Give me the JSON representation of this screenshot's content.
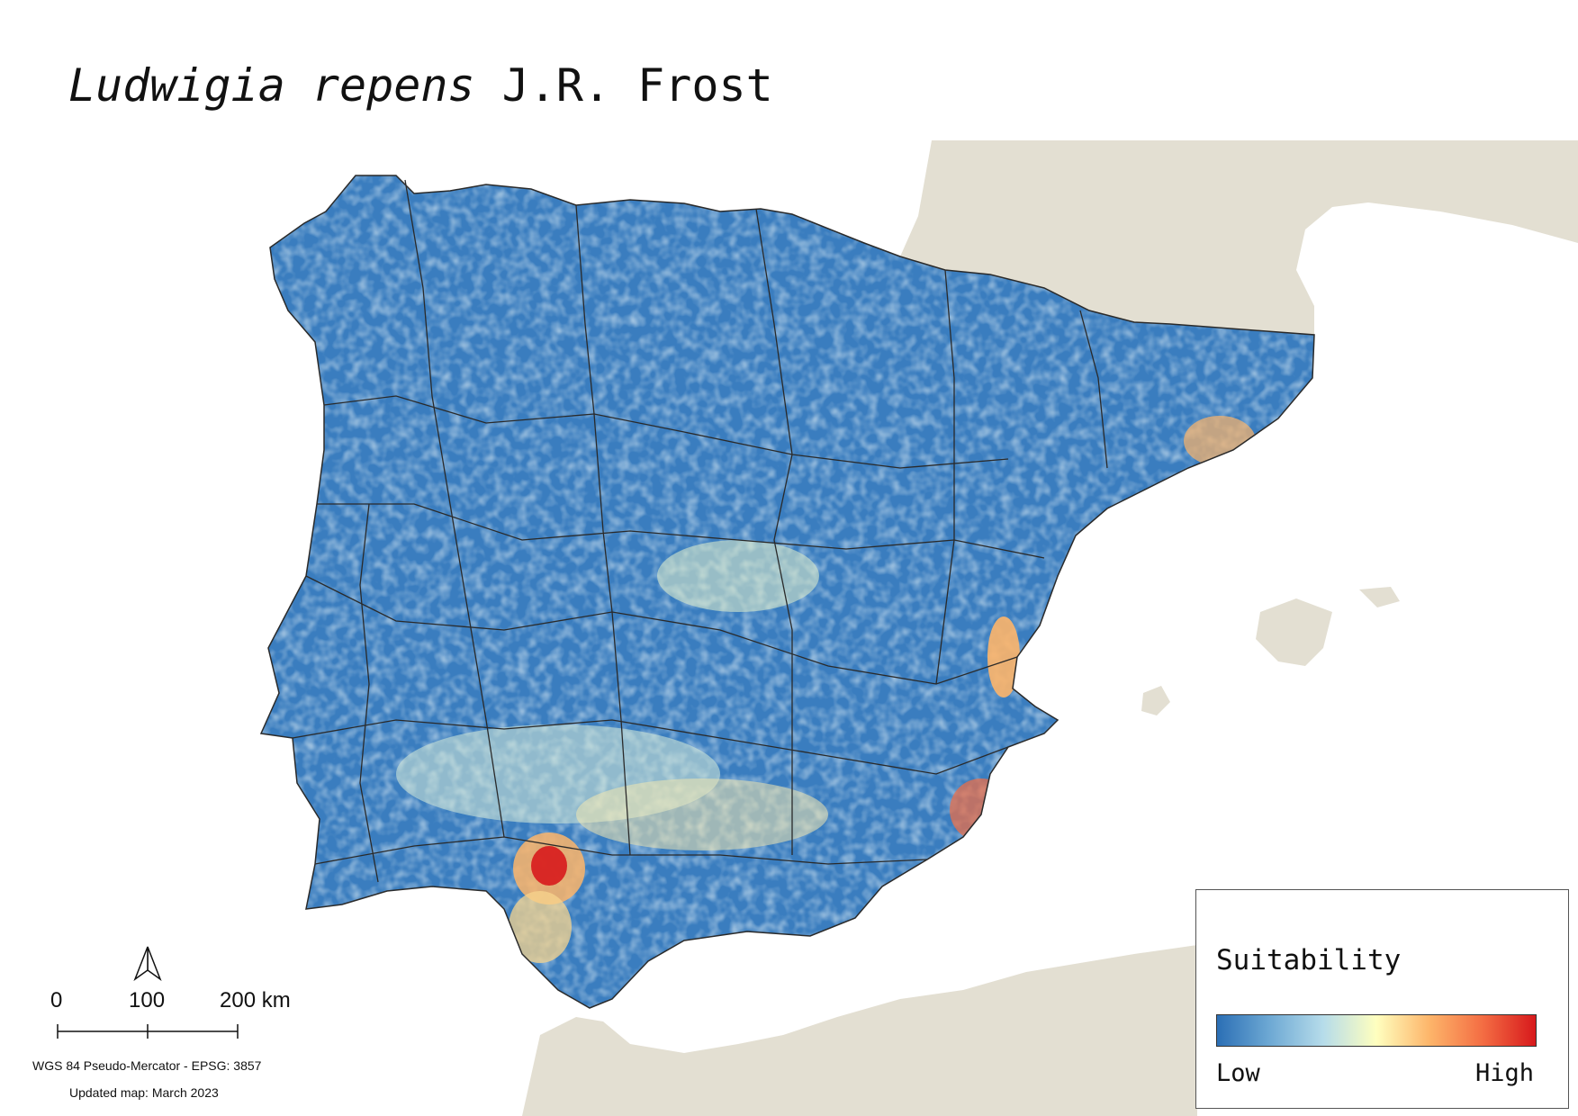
{
  "title": {
    "scientific": "Ludwigia repens",
    "authority": "J.R. Frost"
  },
  "legend": {
    "title": "Suitability",
    "low_label": "Low",
    "high_label": "High",
    "ramp_colors": [
      "#2b6fb5",
      "#6ea9d4",
      "#b6dcea",
      "#ffffbf",
      "#fdb56a",
      "#f46d43",
      "#d7191c"
    ]
  },
  "scale_bar": {
    "labels": [
      "0",
      "100",
      "200 km"
    ]
  },
  "crs_text": "WGS 84 Pseudo-Mercator  - EPSG: 3857",
  "updated_text": "Updated map: March 2023",
  "colors": {
    "land": "#e3dfd2",
    "sea": "#ffffff",
    "suitability_base": "#3a7dbf",
    "border": "#2a2a2a"
  }
}
